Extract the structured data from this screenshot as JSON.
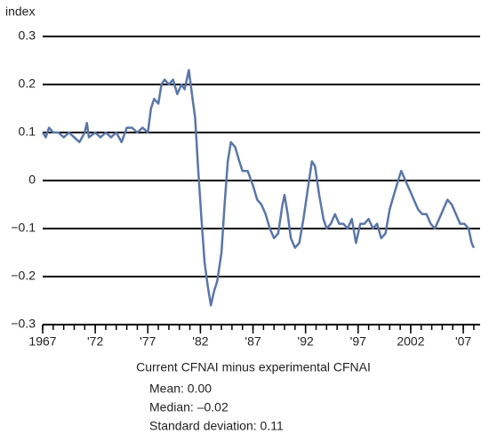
{
  "chart_data": {
    "type": "line",
    "y_label": "index",
    "annotations": [
      "Current CFNAI minus experimental CFNAI",
      "Mean: 0.00",
      "Median: –0.02",
      "Standard deviation: 0.11"
    ],
    "x": [
      1967.0,
      1967.3,
      1967.6,
      1968.0,
      1968.5,
      1969.0,
      1969.5,
      1970.0,
      1970.5,
      1971.0,
      1971.2,
      1971.4,
      1972.0,
      1972.5,
      1973.0,
      1973.5,
      1974.0,
      1974.5,
      1975.0,
      1975.5,
      1976.0,
      1976.5,
      1977.0,
      1977.3,
      1977.6,
      1978.0,
      1978.3,
      1978.6,
      1979.0,
      1979.4,
      1979.8,
      1980.2,
      1980.5,
      1980.9,
      1981.2,
      1981.5,
      1981.8,
      1982.1,
      1982.4,
      1982.7,
      1983.0,
      1983.3,
      1983.6,
      1984.0,
      1984.3,
      1984.6,
      1984.9,
      1985.3,
      1985.7,
      1986.0,
      1986.5,
      1987.0,
      1987.4,
      1987.8,
      1988.2,
      1988.6,
      1989.0,
      1989.4,
      1989.8,
      1990.0,
      1990.3,
      1990.6,
      1991.0,
      1991.4,
      1991.8,
      1992.2,
      1992.6,
      1992.9,
      1993.3,
      1993.7,
      1994.0,
      1994.4,
      1994.8,
      1995.2,
      1995.6,
      1996.0,
      1996.4,
      1996.8,
      1997.2,
      1997.6,
      1998.0,
      1998.4,
      1998.8,
      1999.2,
      1999.6,
      2000.0,
      2000.4,
      2000.8,
      2001.1,
      2001.5,
      2001.9,
      2002.3,
      2002.7,
      2003.1,
      2003.5,
      2003.9,
      2004.3,
      2004.7,
      2005.1,
      2005.5,
      2005.9,
      2006.3,
      2006.7,
      2007.1,
      2007.5,
      2007.8,
      2008.0
    ],
    "values": [
      0.1,
      0.09,
      0.11,
      0.1,
      0.1,
      0.09,
      0.1,
      0.09,
      0.08,
      0.1,
      0.12,
      0.09,
      0.1,
      0.09,
      0.1,
      0.09,
      0.1,
      0.08,
      0.11,
      0.11,
      0.1,
      0.11,
      0.1,
      0.15,
      0.17,
      0.16,
      0.2,
      0.21,
      0.2,
      0.21,
      0.18,
      0.2,
      0.19,
      0.23,
      0.18,
      0.13,
      0.02,
      -0.08,
      -0.17,
      -0.22,
      -0.26,
      -0.23,
      -0.21,
      -0.15,
      -0.05,
      0.04,
      0.08,
      0.07,
      0.04,
      0.02,
      0.02,
      -0.01,
      -0.04,
      -0.05,
      -0.07,
      -0.1,
      -0.12,
      -0.11,
      -0.05,
      -0.03,
      -0.07,
      -0.12,
      -0.14,
      -0.13,
      -0.08,
      -0.02,
      0.04,
      0.03,
      -0.03,
      -0.08,
      -0.1,
      -0.09,
      -0.07,
      -0.09,
      -0.09,
      -0.1,
      -0.08,
      -0.13,
      -0.09,
      -0.09,
      -0.08,
      -0.1,
      -0.09,
      -0.12,
      -0.11,
      -0.06,
      -0.03,
      0.0,
      0.02,
      0.0,
      -0.02,
      -0.04,
      -0.06,
      -0.07,
      -0.07,
      -0.09,
      -0.1,
      -0.08,
      -0.06,
      -0.04,
      -0.05,
      -0.07,
      -0.09,
      -0.09,
      -0.1,
      -0.13,
      -0.14
    ],
    "color": "#5a76a8",
    "xlim": [
      1967,
      2008.6
    ],
    "ylim": [
      -0.3,
      0.3
    ],
    "xticks": [
      1967,
      {
        "value": 1972,
        "label": "'72"
      },
      {
        "value": 1977,
        "label": "'77"
      },
      {
        "value": 1982,
        "label": "'82"
      },
      {
        "value": 1987,
        "label": "'87"
      },
      {
        "value": 1992,
        "label": "'92"
      },
      {
        "value": 1997,
        "label": "'97"
      },
      2002,
      {
        "value": 2007,
        "label": "'07"
      }
    ],
    "xminorticks": [
      1967,
      1968,
      1969,
      1970,
      1971,
      1972,
      1973,
      1974,
      1975,
      1976,
      1977,
      1978,
      1979,
      1980,
      1981,
      1982,
      1983,
      1984,
      1985,
      1986,
      1987,
      1988,
      1989,
      1990,
      1991,
      1992,
      1993,
      1994,
      1995,
      1996,
      1997,
      1998,
      1999,
      2000,
      2001,
      2002,
      2003,
      2004,
      2005,
      2006,
      2007,
      2008
    ],
    "yticks": [
      {
        "value": -0.3,
        "label": "−0.3"
      },
      {
        "value": -0.2,
        "label": "−0.2"
      },
      {
        "value": -0.1,
        "label": "−0.1"
      },
      0,
      0.1,
      0.2,
      0.3
    ],
    "grid": true
  }
}
